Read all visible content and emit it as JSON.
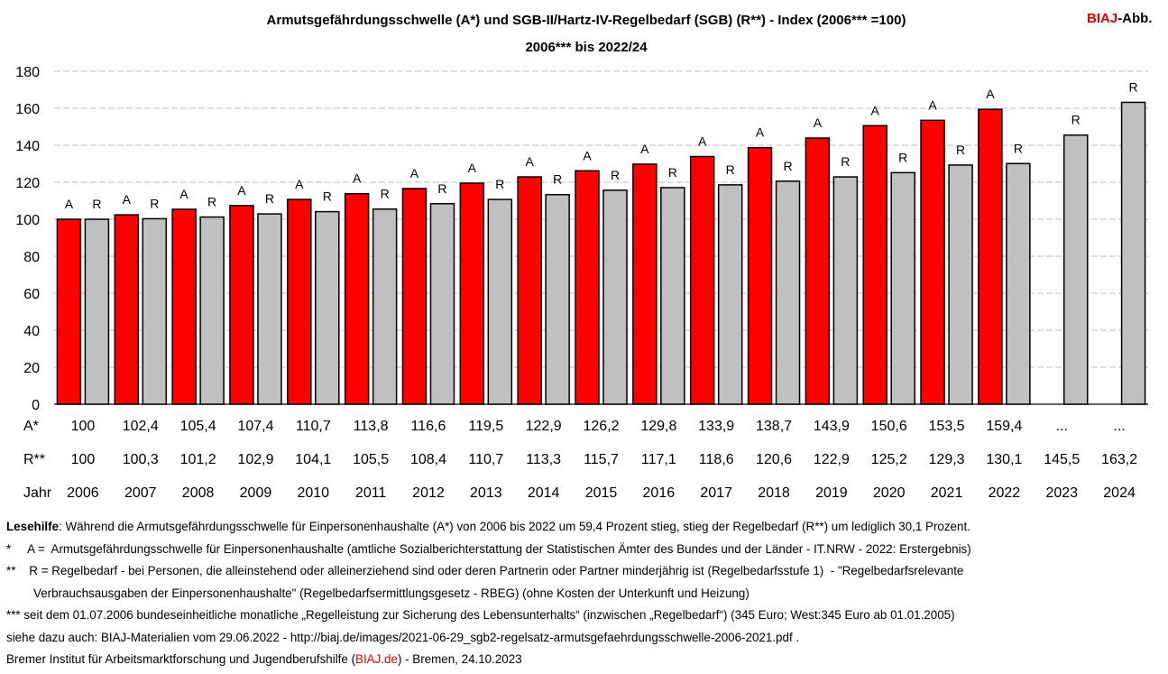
{
  "header": {
    "title_line1": "Armutsgefährdungsschwelle (A*) und SGB-II/Hartz-IV-Regelbedarf (SGB) (R**) - Index (2006*** =100)",
    "title_line2": "2006*** bis 2022/24",
    "brand_red": "BIAJ",
    "brand_rest": "-Abb."
  },
  "colors": {
    "A": "#ff0000",
    "R": "#c0c0c0",
    "grid": "#bfbfbf",
    "brand": "#e00000"
  },
  "chart_data": {
    "type": "bar",
    "categories": [
      "2006",
      "2007",
      "2008",
      "2009",
      "2010",
      "2011",
      "2012",
      "2013",
      "2014",
      "2015",
      "2016",
      "2017",
      "2018",
      "2019",
      "2020",
      "2021",
      "2022",
      "2023",
      "2024"
    ],
    "series": [
      {
        "name": "A",
        "values": [
          100,
          102.4,
          105.4,
          107.4,
          110.7,
          113.8,
          116.6,
          119.5,
          122.9,
          126.2,
          129.8,
          133.9,
          138.7,
          143.9,
          150.6,
          153.5,
          159.4,
          null,
          null
        ]
      },
      {
        "name": "R",
        "values": [
          100,
          100.3,
          101.2,
          102.9,
          104.1,
          105.5,
          108.4,
          110.7,
          113.3,
          115.7,
          117.1,
          118.6,
          120.6,
          122.9,
          125.2,
          129.3,
          130.1,
          145.5,
          163.2
        ]
      }
    ],
    "ylim": [
      0,
      180
    ],
    "yticks": [
      "0",
      "20",
      "40",
      "60",
      "80",
      "100",
      "120",
      "140",
      "160",
      "180"
    ],
    "grid": true,
    "table": {
      "row_labels": [
        "A*",
        "R**",
        "Jahr"
      ],
      "A_labels": [
        "100",
        "102,4",
        "105,4",
        "107,4",
        "110,7",
        "113,8",
        "116,6",
        "119,5",
        "122,9",
        "126,2",
        "129,8",
        "133,9",
        "138,7",
        "143,9",
        "150,6",
        "153,5",
        "159,4",
        "...",
        "..."
      ],
      "R_labels": [
        "100",
        "100,3",
        "101,2",
        "102,9",
        "104,1",
        "105,5",
        "108,4",
        "110,7",
        "113,3",
        "115,7",
        "117,1",
        "118,6",
        "120,6",
        "122,9",
        "125,2",
        "129,3",
        "130,1",
        "145,5",
        "163,2"
      ]
    }
  },
  "notes": {
    "lesehilfe_label": "Lesehilfe",
    "lesehilfe_text": ": Während die Armutsgefährdungsschwelle für Einpersonenhaushalte (A*) von 2006 bis 2022 um 59,4 Prozent stieg, stieg der Regelbedarf (R**) um lediglich 30,1 Prozent.",
    "note1": "*     A =  Armutsgefährdungsschwelle für Einpersonenhaushalte (amtliche Sozialberichterstattung der Statistischen Ämter des Bundes und der Länder - IT.NRW - 2022: Erstergebnis)",
    "note2a": "**    R = Regelbedarf - bei Personen, die alleinstehend oder alleinerziehend sind oder deren Partnerin oder Partner minderjährig ist (Regelbedarfsstufe 1)  - \"Regelbedarfsrelevante",
    "note2b": "Verbrauchsausgaben der Einpersonenhaushalte\" (Regelbedarfsermittlungsgesetz - RBEG) (ohne Kosten der Unterkunft und Heizung)",
    "note3": "*** seit dem 01.07.2006 bundeseinheitliche monatliche „Regelleistung zur Sicherung des Lebensunterhalts“ (inzwischen „Regelbedarf“) (345 Euro; West:345 Euro ab 01.01.2005)",
    "note4": "siehe dazu auch: BIAJ-Materialien vom 29.06.2022 - http://biaj.de/images/2021-06-29_sgb2-regelsatz-armutsgefaehrdungsschwelle-2006-2021.pdf .",
    "note5_a": "Bremer Institut für Arbeitsmarktforschung und Jugendberufshilfe (",
    "note5_link": "BIAJ.de",
    "note5_b": ") - Bremen, 24.10.2023"
  }
}
